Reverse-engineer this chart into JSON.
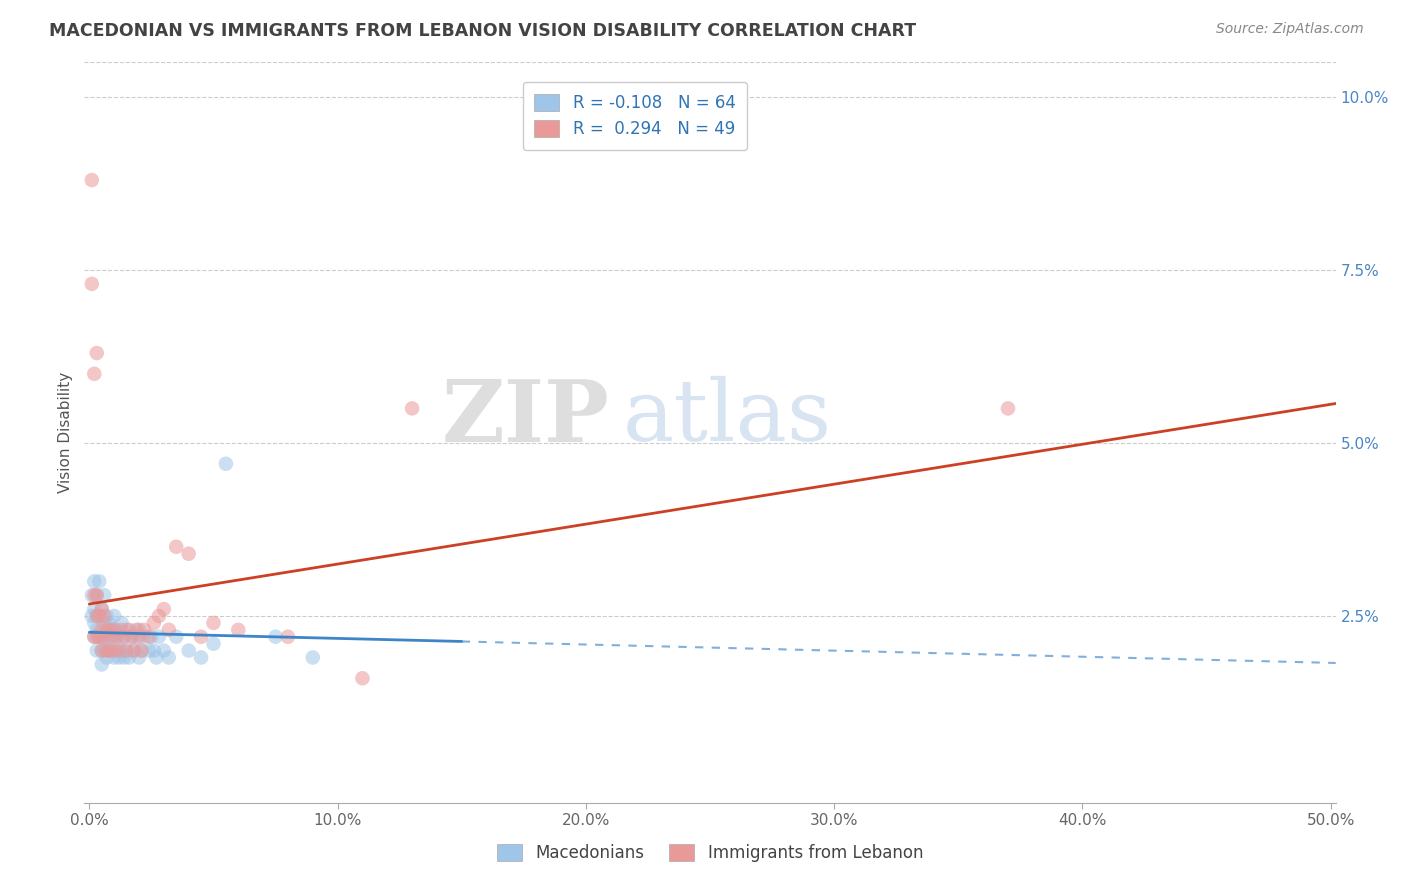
{
  "title": "MACEDONIAN VS IMMIGRANTS FROM LEBANON VISION DISABILITY CORRELATION CHART",
  "source": "Source: ZipAtlas.com",
  "xlabel_blue": "Macedonians",
  "xlabel_pink": "Immigrants from Lebanon",
  "ylabel": "Vision Disability",
  "xlim": [
    -0.002,
    0.502
  ],
  "ylim": [
    -0.002,
    0.105
  ],
  "xticks": [
    0.0,
    0.1,
    0.2,
    0.3,
    0.4,
    0.5
  ],
  "xticklabels": [
    "0.0%",
    "10.0%",
    "20.0%",
    "30.0%",
    "40.0%",
    "50.0%"
  ],
  "yticks_right": [
    0.025,
    0.05,
    0.075,
    0.1
  ],
  "yticklabels_right": [
    "2.5%",
    "5.0%",
    "7.5%",
    "10.0%"
  ],
  "legend_blue_R": "-0.108",
  "legend_blue_N": "64",
  "legend_pink_R": "0.294",
  "legend_pink_N": "49",
  "color_blue": "#9fc5e8",
  "color_pink": "#ea9999",
  "color_blue_fill": "#a4c2f4",
  "color_pink_fill": "#f4cccc",
  "color_blue_line": "#3d85c8",
  "color_pink_line": "#cc4125",
  "color_title": "#434343",
  "watermark_zip": "ZIP",
  "watermark_atlas": "atlas",
  "blue_scatter_x": [
    0.001,
    0.001,
    0.002,
    0.002,
    0.002,
    0.002,
    0.003,
    0.003,
    0.003,
    0.003,
    0.004,
    0.004,
    0.004,
    0.005,
    0.005,
    0.005,
    0.005,
    0.006,
    0.006,
    0.006,
    0.006,
    0.007,
    0.007,
    0.007,
    0.008,
    0.008,
    0.008,
    0.009,
    0.009,
    0.01,
    0.01,
    0.01,
    0.011,
    0.011,
    0.012,
    0.012,
    0.013,
    0.013,
    0.014,
    0.014,
    0.015,
    0.015,
    0.016,
    0.017,
    0.018,
    0.019,
    0.02,
    0.02,
    0.021,
    0.022,
    0.024,
    0.025,
    0.026,
    0.027,
    0.028,
    0.03,
    0.032,
    0.035,
    0.04,
    0.045,
    0.05,
    0.055,
    0.075,
    0.09
  ],
  "blue_scatter_y": [
    0.025,
    0.028,
    0.022,
    0.024,
    0.026,
    0.03,
    0.02,
    0.023,
    0.025,
    0.028,
    0.022,
    0.025,
    0.03,
    0.018,
    0.02,
    0.022,
    0.026,
    0.02,
    0.022,
    0.024,
    0.028,
    0.019,
    0.022,
    0.025,
    0.02,
    0.022,
    0.024,
    0.02,
    0.023,
    0.019,
    0.022,
    0.025,
    0.02,
    0.023,
    0.019,
    0.022,
    0.02,
    0.024,
    0.019,
    0.022,
    0.02,
    0.023,
    0.019,
    0.022,
    0.02,
    0.022,
    0.019,
    0.023,
    0.02,
    0.022,
    0.02,
    0.022,
    0.02,
    0.019,
    0.022,
    0.02,
    0.019,
    0.022,
    0.02,
    0.019,
    0.021,
    0.047,
    0.022,
    0.019
  ],
  "pink_scatter_x": [
    0.001,
    0.001,
    0.002,
    0.002,
    0.003,
    0.003,
    0.003,
    0.004,
    0.004,
    0.005,
    0.005,
    0.005,
    0.006,
    0.006,
    0.007,
    0.007,
    0.008,
    0.008,
    0.009,
    0.01,
    0.01,
    0.011,
    0.012,
    0.013,
    0.014,
    0.015,
    0.016,
    0.017,
    0.018,
    0.019,
    0.02,
    0.021,
    0.022,
    0.024,
    0.026,
    0.028,
    0.03,
    0.032,
    0.035,
    0.04,
    0.045,
    0.05,
    0.06,
    0.08,
    0.11,
    0.13,
    0.37,
    0.002,
    0.003
  ],
  "pink_scatter_y": [
    0.088,
    0.073,
    0.06,
    0.028,
    0.022,
    0.025,
    0.028,
    0.022,
    0.025,
    0.02,
    0.023,
    0.026,
    0.022,
    0.025,
    0.02,
    0.023,
    0.02,
    0.023,
    0.022,
    0.02,
    0.023,
    0.022,
    0.02,
    0.023,
    0.022,
    0.02,
    0.023,
    0.022,
    0.02,
    0.023,
    0.022,
    0.02,
    0.023,
    0.022,
    0.024,
    0.025,
    0.026,
    0.023,
    0.035,
    0.034,
    0.022,
    0.024,
    0.023,
    0.022,
    0.016,
    0.055,
    0.055,
    0.022,
    0.063
  ],
  "blue_line_solid_end": 0.15,
  "pink_line_start_y": 0.02,
  "pink_line_end_y": 0.068
}
